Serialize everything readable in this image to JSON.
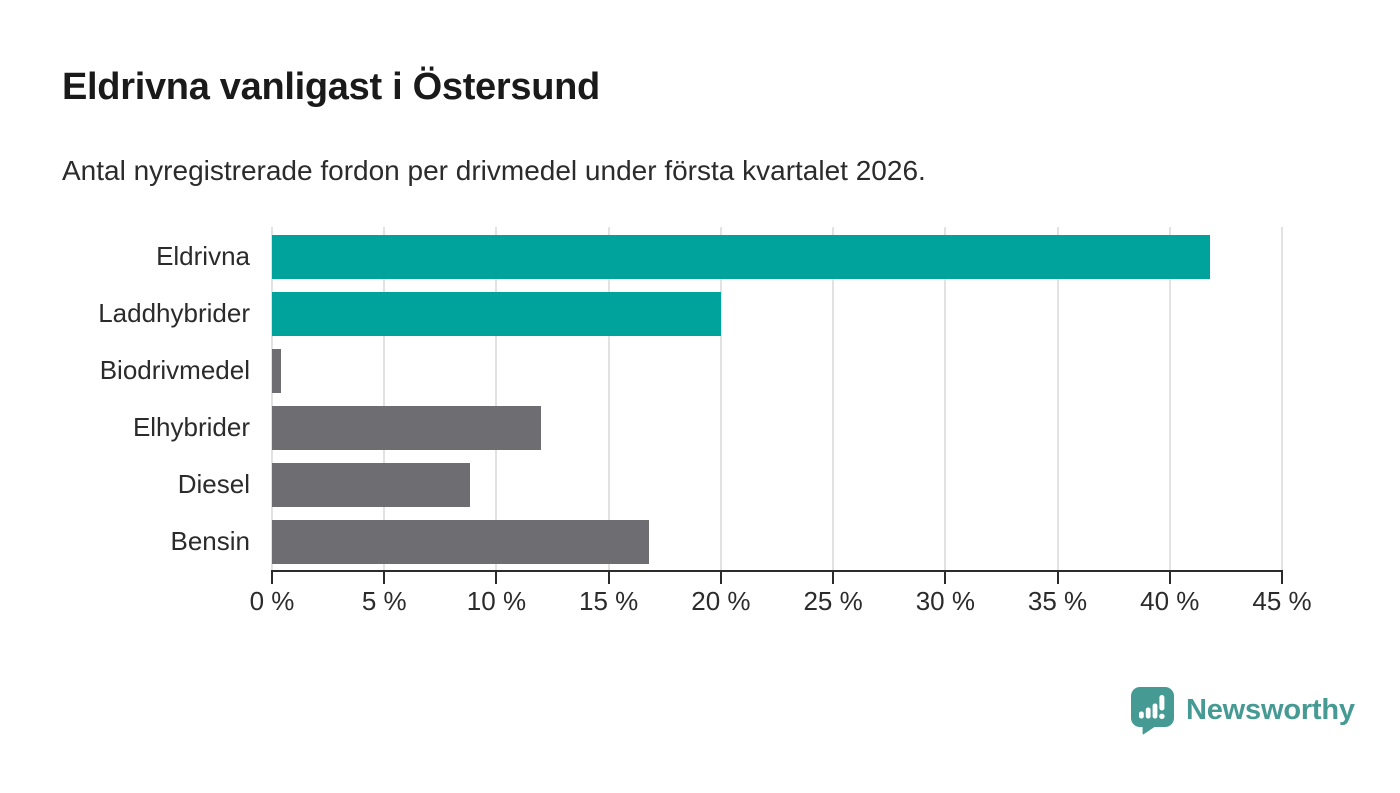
{
  "header": {
    "title": "Eldrivna vanligast i Östersund",
    "subtitle": "Antal nyregistrerade fordon per drivmedel under första kvartalet 2026."
  },
  "chart_data": {
    "type": "bar",
    "orientation": "horizontal",
    "title": "Eldrivna vanligast i Östersund",
    "subtitle": "Antal nyregistrerade fordon per drivmedel under första kvartalet 2026.",
    "categories": [
      "Eldrivna",
      "Laddhybrider",
      "Biodrivmedel",
      "Elhybrider",
      "Diesel",
      "Bensin"
    ],
    "values": [
      41.8,
      20.0,
      0.4,
      12.0,
      8.8,
      16.8
    ],
    "unit": "%",
    "bar_colors": [
      "#00a39b",
      "#00a39b",
      "#6e6e72",
      "#6e6e72",
      "#6e6e72",
      "#6e6e72"
    ],
    "xlim": [
      0,
      45
    ],
    "xticks": [
      0,
      5,
      10,
      15,
      20,
      25,
      30,
      35,
      40,
      45
    ],
    "xtick_suffix": " %",
    "grid": "vertical",
    "legend": "none",
    "xlabel": "",
    "ylabel": ""
  },
  "footer": {
    "brand": "Newsworthy",
    "logo_icon": "newsworthy-pin-barchart-icon"
  },
  "colors": {
    "accent_teal": "#00a39b",
    "neutral_gray": "#6e6e72",
    "logo_teal": "#459a93",
    "gridline": "#e2e2e2",
    "axis": "#2b2b2b",
    "text": "#1a1a1a",
    "background": "#ffffff"
  }
}
